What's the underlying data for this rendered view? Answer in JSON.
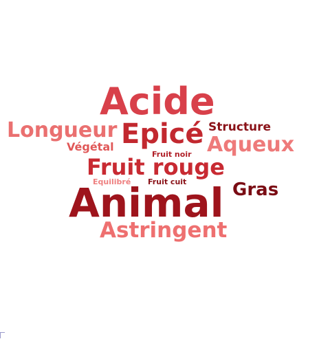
{
  "words": [
    {
      "text": "Acide",
      "color": "#d8404a"
    },
    {
      "text": "Longueur",
      "color": "#ea7070"
    },
    {
      "text": "Epicé",
      "color": "#c2282f"
    },
    {
      "text": "Structure",
      "color": "#8a1218"
    },
    {
      "text": "Aqueux",
      "color": "#ee7a7a"
    },
    {
      "text": "Végétal",
      "color": "#e05858"
    },
    {
      "text": "Fruit noir",
      "color": "#b01e26"
    },
    {
      "text": "Fruit rouge",
      "color": "#c82a32"
    },
    {
      "text": "Equilibré",
      "color": "#ee8080"
    },
    {
      "text": "Fruit cuit",
      "color": "#8a1218"
    },
    {
      "text": "Gras",
      "color": "#7a0c14"
    },
    {
      "text": "Animal",
      "color": "#9e141c"
    },
    {
      "text": "Astringent",
      "color": "#ee7070"
    }
  ]
}
